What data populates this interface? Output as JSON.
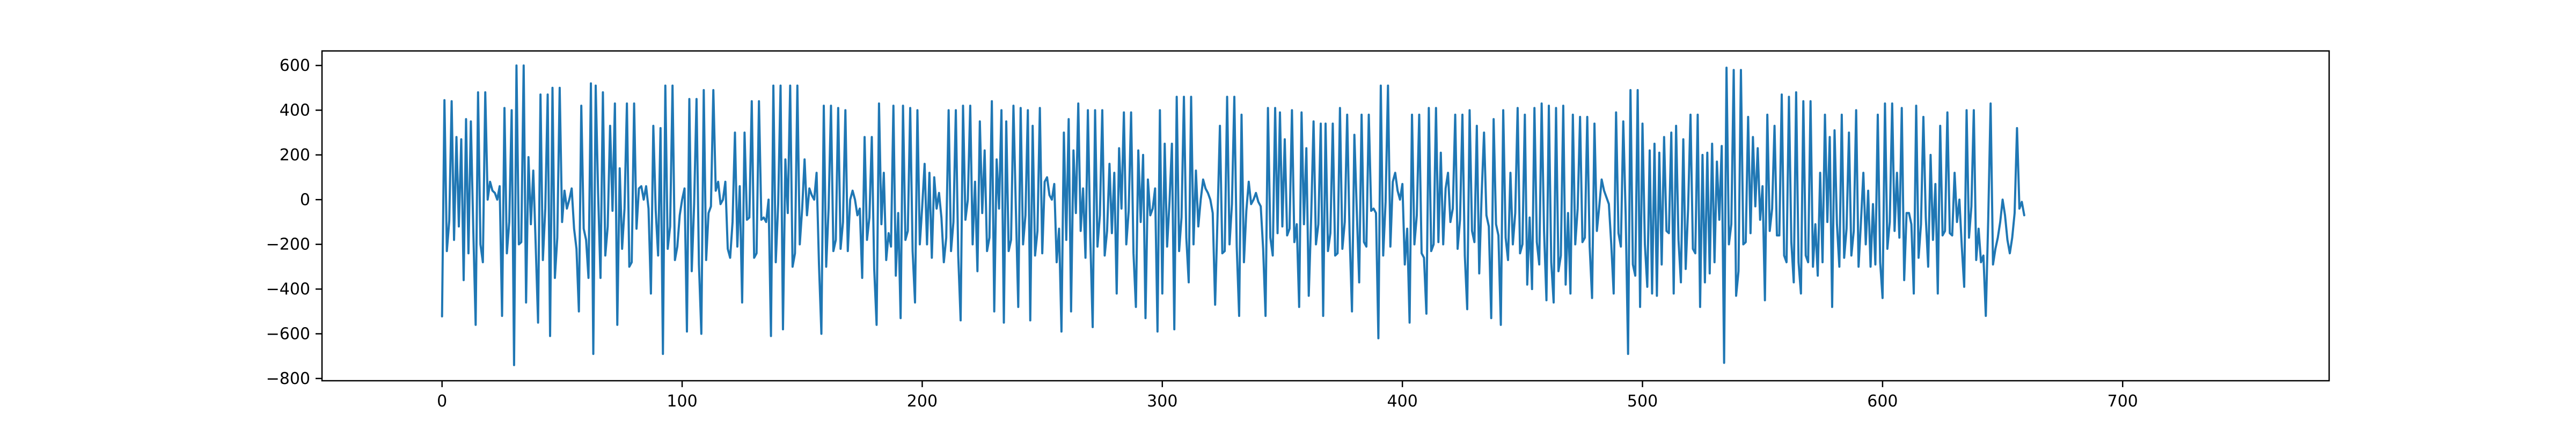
{
  "chart_data": {
    "type": "line",
    "title": "",
    "xlabel": "",
    "ylabel": "",
    "xlim": [
      -50,
      786
    ],
    "ylim": [
      -810,
      665
    ],
    "grid": false,
    "legend": "none",
    "line_color": "#1f77b4",
    "x_ticks": [
      0,
      100,
      200,
      300,
      400,
      500,
      600,
      700
    ],
    "x_tick_labels": [
      "0",
      "100",
      "200",
      "300",
      "400",
      "500",
      "600",
      "700"
    ],
    "y_ticks": [
      -800,
      -600,
      -400,
      -200,
      0,
      200,
      400,
      600
    ],
    "y_tick_labels": [
      "−800",
      "−600",
      "−400",
      "−200",
      "0",
      "200",
      "400",
      "600"
    ],
    "x_start": 0,
    "x_step": 1,
    "values": [
      -522,
      445,
      -230,
      -95,
      440,
      -180,
      280,
      -120,
      270,
      -360,
      360,
      -240,
      350,
      -130,
      -560,
      480,
      -200,
      -280,
      480,
      0,
      80,
      40,
      30,
      0,
      60,
      -520,
      410,
      -240,
      -100,
      400,
      -740,
      600,
      -200,
      -190,
      600,
      -460,
      190,
      -110,
      130,
      -200,
      -550,
      470,
      -270,
      -40,
      470,
      -610,
      500,
      -350,
      -170,
      500,
      -100,
      40,
      -40,
      0,
      50,
      -130,
      -220,
      -500,
      420,
      -130,
      -180,
      -350,
      520,
      -690,
      510,
      30,
      -350,
      480,
      -250,
      -120,
      330,
      -50,
      430,
      -560,
      140,
      -220,
      -40,
      430,
      -300,
      -280,
      430,
      -130,
      50,
      60,
      0,
      60,
      -40,
      -420,
      330,
      -50,
      -250,
      320,
      -690,
      510,
      -220,
      -120,
      510,
      -270,
      -210,
      -70,
      0,
      50,
      -590,
      450,
      -320,
      -20,
      450,
      -290,
      -600,
      490,
      -270,
      -60,
      -30,
      490,
      40,
      80,
      -20,
      0,
      80,
      -220,
      -260,
      -100,
      300,
      -210,
      60,
      -460,
      300,
      -90,
      -80,
      440,
      -260,
      -240,
      440,
      -90,
      -80,
      -100,
      0,
      -610,
      510,
      -280,
      -20,
      510,
      -580,
      180,
      -60,
      510,
      -300,
      -240,
      510,
      -200,
      -40,
      180,
      -70,
      50,
      20,
      0,
      120,
      -290,
      -600,
      420,
      -300,
      -40,
      420,
      -230,
      -180,
      410,
      -220,
      -100,
      400,
      -230,
      0,
      40,
      0,
      -70,
      -40,
      -350,
      280,
      -180,
      -80,
      280,
      -310,
      -560,
      430,
      -110,
      120,
      -270,
      -150,
      -210,
      420,
      -340,
      -60,
      -530,
      420,
      -180,
      -140,
      410,
      -230,
      -460,
      400,
      -200,
      -30,
      160,
      -200,
      120,
      -260,
      100,
      -40,
      30,
      -80,
      -280,
      -170,
      400,
      -230,
      -100,
      400,
      -250,
      -540,
      420,
      -90,
      0,
      420,
      -200,
      80,
      -320,
      350,
      -60,
      220,
      -230,
      -170,
      440,
      -500,
      180,
      -40,
      400,
      -550,
      350,
      -230,
      -180,
      420,
      -40,
      -480,
      410,
      -200,
      -70,
      400,
      -540,
      330,
      -250,
      -140,
      410,
      -240,
      80,
      100,
      20,
      0,
      70,
      -280,
      -130,
      -590,
      300,
      -180,
      360,
      -500,
      220,
      -60,
      430,
      -140,
      50,
      -260,
      400,
      -170,
      -570,
      400,
      -210,
      -70,
      400,
      -250,
      -140,
      160,
      -150,
      120,
      -420,
      230,
      -40,
      390,
      -200,
      -50,
      390,
      -240,
      -480,
      220,
      -100,
      200,
      -530,
      90,
      -70,
      -40,
      50,
      -590,
      400,
      -420,
      250,
      -210,
      -10,
      250,
      -580,
      460,
      -230,
      -80,
      460,
      -170,
      -370,
      460,
      -200,
      130,
      -120,
      0,
      90,
      50,
      30,
      0,
      -60,
      -470,
      -80,
      330,
      -240,
      -230,
      460,
      -200,
      -20,
      460,
      -210,
      -520,
      380,
      -280,
      -50,
      80,
      -20,
      0,
      30,
      -10,
      -30,
      -220,
      -520,
      410,
      -170,
      -250,
      410,
      -150,
      390,
      -120,
      270,
      -160,
      -130,
      400,
      -190,
      -110,
      -480,
      390,
      -110,
      230,
      -430,
      -80,
      350,
      -200,
      -110,
      340,
      -520,
      340,
      -230,
      -150,
      340,
      -250,
      -240,
      410,
      -220,
      -100,
      380,
      -150,
      -500,
      290,
      -50,
      -370,
      380,
      -190,
      -210,
      380,
      -50,
      -40,
      -60,
      -620,
      510,
      -250,
      -10,
      510,
      -210,
      80,
      120,
      40,
      0,
      70,
      -290,
      -130,
      -550,
      380,
      -200,
      -70,
      380,
      -240,
      -260,
      -510,
      410,
      -230,
      -200,
      410,
      -190,
      210,
      -200,
      50,
      120,
      -100,
      -40,
      380,
      -220,
      -90,
      380,
      -250,
      -490,
      400,
      -140,
      -190,
      330,
      -330,
      20,
      300,
      -70,
      -120,
      -530,
      360,
      -110,
      -160,
      -560,
      400,
      -170,
      -270,
      120,
      -200,
      -60,
      410,
      -240,
      -200,
      380,
      -380,
      -80,
      -400,
      410,
      -190,
      -290,
      430,
      -140,
      -450,
      420,
      -280,
      -460,
      410,
      -320,
      -250,
      420,
      -380,
      -60,
      -420,
      380,
      -200,
      -40,
      370,
      -190,
      -170,
      370,
      -210,
      -440,
      340,
      -140,
      -30,
      90,
      40,
      10,
      -20,
      -200,
      -420,
      390,
      -150,
      -210,
      350,
      -70,
      -690,
      490,
      -290,
      -340,
      490,
      -480,
      340,
      -200,
      -390,
      220,
      -420,
      250,
      -430,
      210,
      -290,
      280,
      -140,
      -150,
      300,
      -420,
      330,
      -180,
      -370,
      270,
      -310,
      -40,
      380,
      -220,
      -240,
      380,
      -480,
      200,
      -370,
      210,
      -330,
      250,
      -280,
      170,
      -90,
      240,
      -730,
      590,
      -200,
      -110,
      580,
      -430,
      -320,
      580,
      -200,
      -190,
      370,
      -150,
      280,
      -30,
      230,
      -90,
      60,
      -450,
      380,
      -140,
      -40,
      330,
      -160,
      -160,
      470,
      -250,
      -280,
      460,
      -190,
      -370,
      480,
      -280,
      -420,
      440,
      -250,
      -280,
      440,
      -300,
      -110,
      -340,
      120,
      -280,
      380,
      -100,
      280,
      -480,
      310,
      -110,
      -300,
      380,
      -260,
      -130,
      300,
      -250,
      -140,
      400,
      -300,
      -100,
      120,
      -200,
      40,
      -300,
      -20,
      -290,
      380,
      -280,
      -440,
      430,
      -220,
      -100,
      430,
      -140,
      120,
      -170,
      410,
      -360,
      -60,
      -60,
      -110,
      -420,
      420,
      -260,
      -110,
      370,
      -80,
      -300,
      200,
      -180,
      70,
      -420,
      330,
      -160,
      -140,
      390,
      -150,
      -160,
      120,
      -100,
      0,
      -210,
      -390,
      400,
      -170,
      -30,
      400,
      -270,
      -130,
      -280,
      -250,
      -520,
      -90,
      430,
      -290,
      -220,
      -170,
      -100,
      0,
      -70,
      -180,
      -240,
      -170,
      -60,
      320,
      -40,
      -10,
      -70
    ]
  }
}
